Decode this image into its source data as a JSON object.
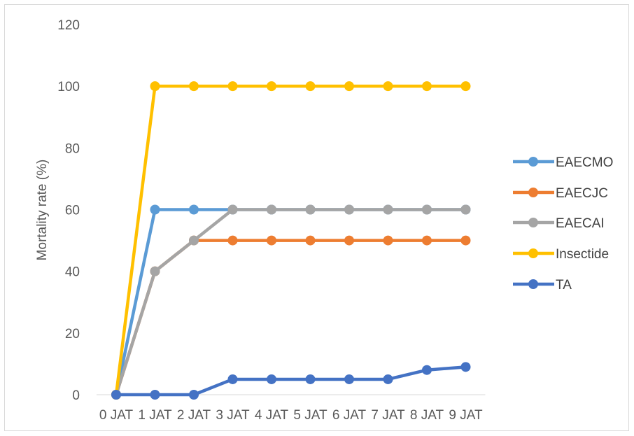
{
  "chart_data": {
    "type": "line",
    "categories": [
      "0 JAT",
      "1 JAT",
      "2 JAT",
      "3 JAT",
      "4 JAT",
      "5 JAT",
      "6 JAT",
      "7 JAT",
      "8 JAT",
      "9 JAT"
    ],
    "series": [
      {
        "name": " EAECMO",
        "color": "#5B9BD5",
        "values": [
          0,
          60,
          60,
          60,
          60,
          60,
          60,
          60,
          60,
          60
        ]
      },
      {
        "name": "EAECJC",
        "color": "#ED7D31",
        "values": [
          0,
          40,
          50,
          50,
          50,
          50,
          50,
          50,
          50,
          50
        ]
      },
      {
        "name": "EAECAI",
        "color": "#A5A5A5",
        "values": [
          0,
          40,
          50,
          60,
          60,
          60,
          60,
          60,
          60,
          60
        ]
      },
      {
        "name": "Insectide",
        "color": "#FFC000",
        "values": [
          0,
          100,
          100,
          100,
          100,
          100,
          100,
          100,
          100,
          100
        ]
      },
      {
        "name": "TA",
        "color": "#4472C4",
        "values": [
          0,
          0,
          0,
          5,
          5,
          5,
          5,
          5,
          8,
          9
        ]
      }
    ],
    "draw_order": [
      1,
      0,
      2,
      3,
      4
    ],
    "yticks": [
      0,
      20,
      40,
      60,
      80,
      100,
      120
    ],
    "ylim": [
      0,
      120
    ],
    "ylabel": "Mortality rate (%)",
    "xlabel": "",
    "title": "",
    "grid": false,
    "legend_position": "right"
  }
}
